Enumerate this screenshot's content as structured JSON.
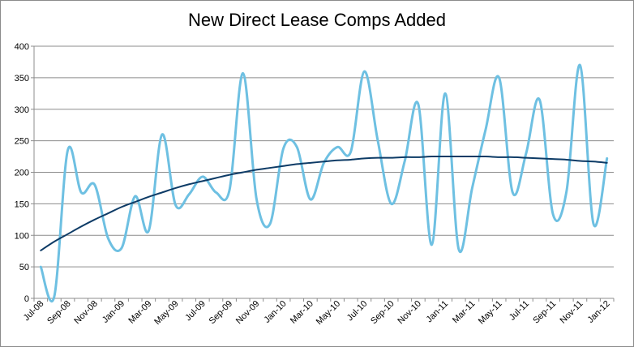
{
  "chart_data": {
    "type": "line",
    "title": "New Direct Lease Comps Added",
    "xlabel": "",
    "ylabel": "",
    "ylim": [
      0,
      400
    ],
    "yticks": [
      0,
      50,
      100,
      150,
      200,
      250,
      300,
      350,
      400
    ],
    "grid": true,
    "legend": "none",
    "x": [
      "Jul-08",
      "Aug-08",
      "Sep-08",
      "Oct-08",
      "Nov-08",
      "Dec-08",
      "Jan-09",
      "Feb-09",
      "Mar-09",
      "Apr-09",
      "May-09",
      "Jun-09",
      "Jul-09",
      "Aug-09",
      "Sep-09",
      "Oct-09",
      "Nov-09",
      "Dec-09",
      "Jan-10",
      "Feb-10",
      "Mar-10",
      "Apr-10",
      "May-10",
      "Jun-10",
      "Jul-10",
      "Aug-10",
      "Sep-10",
      "Oct-10",
      "Nov-10",
      "Dec-10",
      "Jan-11",
      "Feb-11",
      "Mar-11",
      "Apr-11",
      "May-11",
      "Jun-11",
      "Jul-11",
      "Aug-11",
      "Sep-11",
      "Oct-11",
      "Nov-11",
      "Dec-11",
      "Jan-12"
    ],
    "xtick_labels": [
      "Jul-08",
      "Sep-08",
      "Nov-08",
      "Jan-09",
      "Mar-09",
      "May-09",
      "Jul-09",
      "Sep-09",
      "Nov-09",
      "Jan-10",
      "Mar-10",
      "May-10",
      "Jul-10",
      "Sep-10",
      "Nov-10",
      "Jan-11",
      "Mar-11",
      "May-11",
      "Jul-11",
      "Sep-11",
      "Nov-11",
      "Jan-12"
    ],
    "series": [
      {
        "values": [
          50,
          3,
          235,
          168,
          180,
          95,
          80,
          162,
          107,
          260,
          148,
          165,
          193,
          168,
          172,
          357,
          158,
          118,
          238,
          240,
          157,
          215,
          240,
          233,
          360,
          250,
          150,
          218,
          308,
          85,
          325,
          78,
          175,
          268,
          350,
          168,
          230,
          315,
          133,
          170,
          370,
          118,
          222
        ],
        "color": "#6ec0e2"
      },
      {
        "values": [
          76,
          90,
          102,
          114,
          125,
          135,
          145,
          153,
          161,
          168,
          175,
          181,
          186,
          191,
          196,
          200,
          204,
          207,
          210,
          213,
          215,
          217,
          219,
          220,
          222,
          223,
          223,
          224,
          224,
          225,
          225,
          225,
          225,
          225,
          224,
          224,
          223,
          222,
          221,
          220,
          218,
          217,
          215
        ],
        "color": "#0d3b66"
      }
    ]
  }
}
